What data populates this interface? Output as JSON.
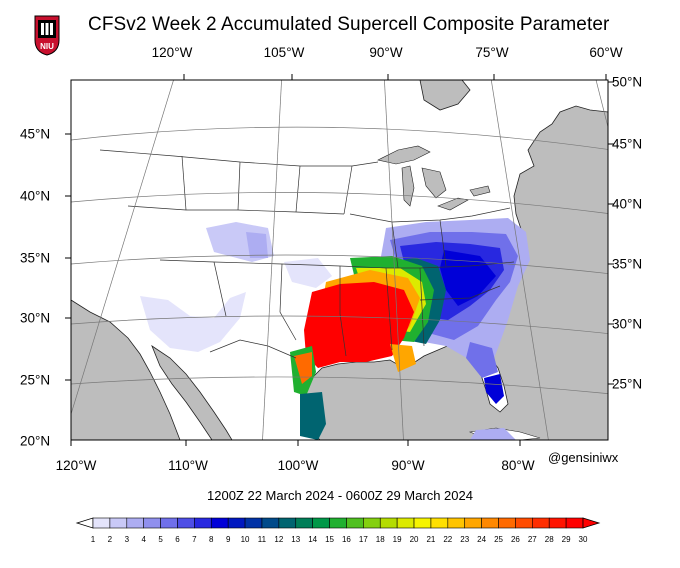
{
  "header": {
    "title": "CFSv2 Week 2 Accumulated Supercell Composite Parameter",
    "logo_text": "NIU"
  },
  "map": {
    "top_lon_labels": [
      "120°W",
      "105°W",
      "90°W",
      "75°W",
      "60°W"
    ],
    "bottom_lon_labels": [
      "120°W",
      "110°W",
      "100°W",
      "90°W",
      "80°W"
    ],
    "left_lat_labels": [
      "45°N",
      "40°N",
      "35°N",
      "30°N",
      "25°N",
      "20°N"
    ],
    "right_lat_labels": [
      "50°N",
      "45°N",
      "40°N",
      "35°N",
      "30°N",
      "25°N"
    ],
    "colors": {
      "land": "#ffffff",
      "water": "#bdbdbd",
      "borders": "#333333"
    }
  },
  "footer": {
    "date_range": "1200Z 22  March  2024  - 0600Z 29  March  2024",
    "credit": "@gensiniwx"
  },
  "colorbar": {
    "labels": [
      "1",
      "2",
      "3",
      "4",
      "5",
      "6",
      "7",
      "8",
      "9",
      "10",
      "11",
      "12",
      "13",
      "14",
      "15",
      "16",
      "17",
      "18",
      "19",
      "20",
      "21",
      "22",
      "23",
      "24",
      "25",
      "26",
      "27",
      "28",
      "29",
      "30"
    ],
    "colors": [
      "#ffffff",
      "#e4e4fb",
      "#c9c9f7",
      "#adadf2",
      "#9090ee",
      "#7070ea",
      "#4e4ee6",
      "#2828e0",
      "#0000d8",
      "#0018c0",
      "#0032a6",
      "#004a8a",
      "#006470",
      "#007e58",
      "#009848",
      "#20b030",
      "#50c020",
      "#84d010",
      "#b4dc00",
      "#dcea00",
      "#f6f400",
      "#ffe000",
      "#ffc400",
      "#ffa600",
      "#ff8800",
      "#ff6a00",
      "#ff4c00",
      "#ff2e00",
      "#ff1400",
      "#ff0000"
    ]
  }
}
